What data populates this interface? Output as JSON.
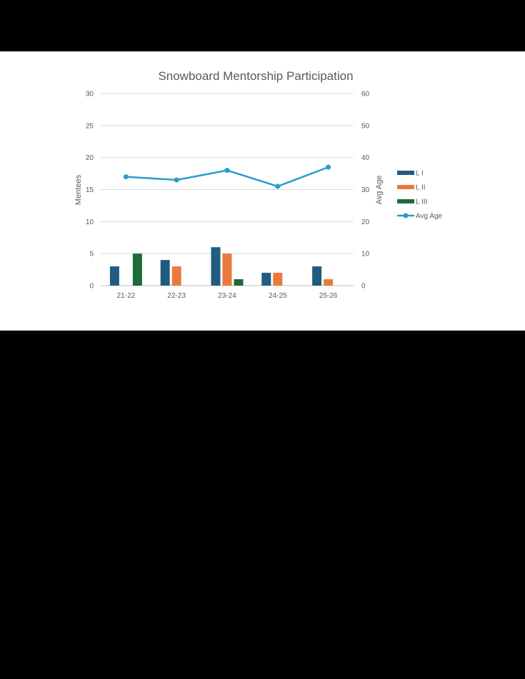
{
  "chart_data": {
    "type": "bar",
    "title": "Snowboard Mentorship Participation",
    "categories": [
      "21-22",
      "22-23",
      "23-24",
      "24-25",
      "25-26"
    ],
    "series": [
      {
        "name": "L I",
        "type": "bar",
        "axis": "left",
        "color": "#1f5c80",
        "values": [
          3,
          4,
          6,
          2,
          3
        ]
      },
      {
        "name": "L II",
        "type": "bar",
        "axis": "left",
        "color": "#ea7a3c",
        "values": [
          0,
          3,
          5,
          2,
          1
        ]
      },
      {
        "name": "L III",
        "type": "bar",
        "axis": "left",
        "color": "#1d6b3a",
        "values": [
          5,
          0,
          1,
          0,
          0
        ]
      },
      {
        "name": "Avg Age",
        "type": "line",
        "axis": "right",
        "color": "#2a9ac9",
        "values": [
          34,
          33,
          36,
          31,
          37
        ]
      }
    ],
    "ylabel": "Mentees",
    "y2label": "Avg Age",
    "ylim": [
      0,
      30
    ],
    "y2lim": [
      0,
      60
    ],
    "yticks": [
      "0",
      "5",
      "10",
      "15",
      "20",
      "25",
      "30"
    ],
    "y2ticks": [
      "0",
      "10",
      "20",
      "30",
      "40",
      "50",
      "60"
    ],
    "grid": true,
    "legend_position": "right"
  }
}
